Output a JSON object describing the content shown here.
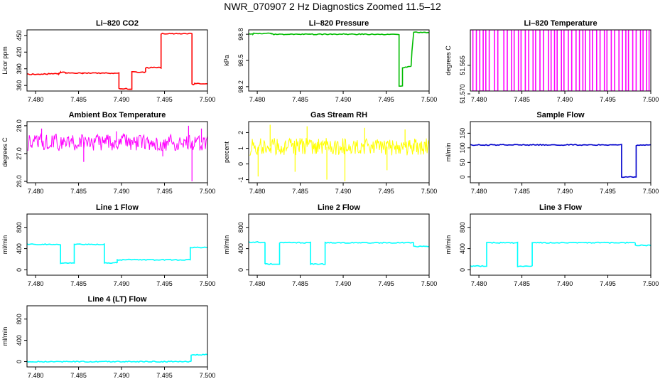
{
  "page": {
    "title": "NWR_070907  2 Hz Diagnostics Zoomed 11.5–12"
  },
  "colors": {
    "red": "#ff0000",
    "green": "#00bb00",
    "magenta": "#ff00ff",
    "yellow": "#ffff00",
    "blue": "#0000cc",
    "cyan": "#00ffff"
  },
  "chart_data": [
    {
      "type": "line",
      "title": "Li–820 CO2",
      "ylabel": "Licor ppm",
      "color": "red",
      "xlim": [
        7.479,
        7.5
      ],
      "ylim": [
        350,
        460
      ],
      "xticks": [
        "7.480",
        "7.485",
        "7.490",
        "7.495",
        "7.500"
      ],
      "yticks": [
        "360",
        "390",
        "420",
        "450"
      ],
      "series": [
        {
          "points": [
            [
              7.479,
              380
            ],
            [
              7.4827,
              381
            ],
            [
              7.4829,
              384
            ],
            [
              7.4835,
              383
            ],
            [
              7.4855,
              382
            ],
            [
              7.4897,
              382
            ],
            [
              7.4897,
              354
            ],
            [
              7.4912,
              354
            ],
            [
              7.4912,
              384
            ],
            [
              7.4928,
              384
            ],
            [
              7.4928,
              392
            ],
            [
              7.4946,
              392
            ],
            [
              7.4946,
              453
            ],
            [
              7.4982,
              453
            ],
            [
              7.4982,
              362
            ],
            [
              7.4985,
              362
            ],
            [
              7.4985,
              363
            ],
            [
              7.5,
              363
            ]
          ]
        }
      ]
    },
    {
      "type": "line",
      "title": "Li–820 Pressure",
      "ylabel": "kPa",
      "color": "green",
      "xlim": [
        7.479,
        7.5
      ],
      "ylim": [
        98.15,
        98.85
      ],
      "xticks": [
        "7.480",
        "7.485",
        "7.490",
        "7.495",
        "7.500"
      ],
      "yticks": [
        "98.2",
        "98.5",
        "98.8"
      ],
      "series": [
        {
          "points": [
            [
              7.479,
              98.8
            ],
            [
              7.4795,
              98.8
            ],
            [
              7.4796,
              98.81
            ],
            [
              7.4816,
              98.81
            ],
            [
              7.4816,
              98.8
            ],
            [
              7.4965,
              98.8
            ],
            [
              7.4965,
              98.21
            ],
            [
              7.4969,
              98.21
            ],
            [
              7.4969,
              98.42
            ],
            [
              7.4979,
              98.43
            ],
            [
              7.498,
              98.6
            ],
            [
              7.4982,
              98.82
            ],
            [
              7.5,
              98.82
            ]
          ]
        }
      ]
    },
    {
      "type": "line",
      "title": "Li–820 Temperature",
      "ylabel": "degrees C",
      "color": "magenta",
      "xlim": [
        7.479,
        7.5
      ],
      "ylim": [
        51.5695,
        51.5588
      ],
      "xticks": [
        "7.480",
        "7.485",
        "7.490",
        "7.495",
        "7.500"
      ],
      "yticks": [
        "51.570",
        "51.565"
      ],
      "series": [
        {
          "switch_times": [
            7.4793,
            7.4797,
            7.4801,
            7.4805,
            7.4808,
            7.4812,
            7.4818,
            7.4822,
            7.4829,
            7.4833,
            7.4838,
            7.4841,
            7.4846,
            7.4849,
            7.4854,
            7.4858,
            7.4863,
            7.4866,
            7.4871,
            7.4875,
            7.4881,
            7.4884,
            7.4888,
            7.4891,
            7.4896,
            7.4899,
            7.4904,
            7.4908,
            7.4913,
            7.4917,
            7.4921,
            7.4924,
            7.4929,
            7.4932,
            7.4937,
            7.4941,
            7.4946,
            7.4949,
            7.4954,
            7.4958,
            7.4963,
            7.4967,
            7.4971,
            7.4974,
            7.4979,
            7.4983,
            7.4988,
            7.4991,
            7.4995,
            7.4998
          ]
        }
      ]
    },
    {
      "type": "line",
      "title": "Ambient Box Temperature",
      "ylabel": "degrees C",
      "color": "magenta",
      "xlim": [
        7.479,
        7.5
      ],
      "ylim": [
        25.95,
        28.15
      ],
      "xticks": [
        "7.480",
        "7.485",
        "7.490",
        "7.495",
        "7.500"
      ],
      "yticks": [
        "26.0",
        "27.0",
        "28.0"
      ],
      "series": [
        {
          "band_center": 27.4,
          "band_halfwidth": 0.3,
          "spikes": [
            [
              7.4807,
              27.9
            ],
            [
              7.4856,
              26.7
            ],
            [
              7.4894,
              27.8
            ],
            [
              7.4948,
              26.9
            ],
            [
              7.4978,
              28.0
            ],
            [
              7.4982,
              26.0
            ],
            [
              7.4993,
              27.9
            ]
          ]
        }
      ]
    },
    {
      "type": "line",
      "title": "Gas Stream RH",
      "ylabel": "percent",
      "color": "yellow",
      "xlim": [
        7.479,
        7.5
      ],
      "ylim": [
        -1.2,
        2.7
      ],
      "xticks": [
        "7.480",
        "7.485",
        "7.490",
        "7.495",
        "7.500"
      ],
      "yticks": [
        "-1",
        "0",
        "1",
        "2"
      ],
      "series": [
        {
          "band_center": 1.1,
          "band_halfwidth": 0.55,
          "spikes": [
            [
              7.4801,
              -0.8
            ],
            [
              7.4815,
              2.5
            ],
            [
              7.4844,
              -0.5
            ],
            [
              7.4858,
              2.4
            ],
            [
              7.4881,
              -1.0
            ],
            [
              7.4902,
              -1.1
            ],
            [
              7.4925,
              2.3
            ],
            [
              7.4951,
              -0.4
            ],
            [
              7.4972,
              2.2
            ]
          ]
        }
      ]
    },
    {
      "type": "line",
      "title": "Sample Flow",
      "ylabel": "ml/min",
      "color": "blue",
      "xlim": [
        7.479,
        7.5
      ],
      "ylim": [
        -20,
        190
      ],
      "xticks": [
        "7.480",
        "7.485",
        "7.490",
        "7.495",
        "7.500"
      ],
      "yticks": [
        "0",
        "50",
        "100",
        "150"
      ],
      "series": [
        {
          "points": [
            [
              7.479,
              110
            ],
            [
              7.4966,
              110
            ],
            [
              7.4966,
              0
            ],
            [
              7.4983,
              0
            ],
            [
              7.4983,
              109
            ],
            [
              7.5,
              109
            ]
          ]
        }
      ]
    },
    {
      "type": "line",
      "title": "Line 1 Flow",
      "ylabel": "ml/min",
      "color": "cyan",
      "xlim": [
        7.479,
        7.5
      ],
      "ylim": [
        -100,
        1050
      ],
      "xticks": [
        "7.480",
        "7.485",
        "7.490",
        "7.495",
        "7.500"
      ],
      "yticks": [
        "0",
        "400",
        "800"
      ],
      "series": [
        {
          "points": [
            [
              7.479,
              480
            ],
            [
              7.4829,
              480
            ],
            [
              7.4829,
              130
            ],
            [
              7.4845,
              130
            ],
            [
              7.4845,
              480
            ],
            [
              7.488,
              480
            ],
            [
              7.488,
              130
            ],
            [
              7.4895,
              130
            ],
            [
              7.4895,
              190
            ],
            [
              7.498,
              190
            ],
            [
              7.498,
              420
            ],
            [
              7.5,
              420
            ]
          ]
        }
      ]
    },
    {
      "type": "line",
      "title": "Line 2 Flow",
      "ylabel": "ml/min",
      "color": "cyan",
      "xlim": [
        7.479,
        7.5
      ],
      "ylim": [
        -100,
        1050
      ],
      "xticks": [
        "7.480",
        "7.485",
        "7.490",
        "7.495",
        "7.500"
      ],
      "yticks": [
        "0",
        "400",
        "800"
      ],
      "series": [
        {
          "points": [
            [
              7.479,
              520
            ],
            [
              7.4809,
              520
            ],
            [
              7.4809,
              110
            ],
            [
              7.4826,
              110
            ],
            [
              7.4826,
              510
            ],
            [
              7.4862,
              510
            ],
            [
              7.4862,
              110
            ],
            [
              7.4879,
              110
            ],
            [
              7.4879,
              510
            ],
            [
              7.4982,
              510
            ],
            [
              7.4982,
              440
            ],
            [
              7.5,
              440
            ]
          ]
        }
      ]
    },
    {
      "type": "line",
      "title": "Line 3 Flow",
      "ylabel": "ml/min",
      "color": "cyan",
      "xlim": [
        7.479,
        7.5
      ],
      "ylim": [
        -100,
        1050
      ],
      "xticks": [
        "7.480",
        "7.485",
        "7.490",
        "7.495",
        "7.500"
      ],
      "yticks": [
        "0",
        "400",
        "800"
      ],
      "series": [
        {
          "points": [
            [
              7.479,
              70
            ],
            [
              7.4809,
              70
            ],
            [
              7.4809,
              510
            ],
            [
              7.4845,
              510
            ],
            [
              7.4845,
              70
            ],
            [
              7.4862,
              70
            ],
            [
              7.4862,
              510
            ],
            [
              7.4982,
              510
            ],
            [
              7.4982,
              460
            ],
            [
              7.5,
              460
            ]
          ]
        }
      ]
    },
    {
      "type": "line",
      "title": "Line 4 (LT) Flow",
      "ylabel": "ml/min",
      "color": "cyan",
      "xlim": [
        7.479,
        7.5
      ],
      "ylim": [
        -100,
        1050
      ],
      "xticks": [
        "7.480",
        "7.485",
        "7.490",
        "7.495",
        "7.500"
      ],
      "yticks": [
        "0",
        "400",
        "800"
      ],
      "series": [
        {
          "points": [
            [
              7.479,
              0
            ],
            [
              7.4981,
              0
            ],
            [
              7.4981,
              130
            ],
            [
              7.5,
              130
            ]
          ]
        }
      ]
    }
  ]
}
